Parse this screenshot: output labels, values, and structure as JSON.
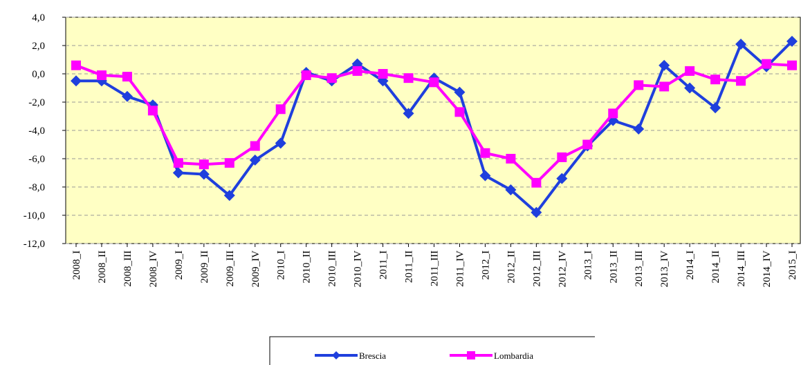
{
  "chart_data": {
    "type": "line",
    "categories": [
      "2008_I",
      "2008_II",
      "2008_III",
      "2008_IV",
      "2009_I",
      "2009_II",
      "2009_III",
      "2009_IV",
      "2010_I",
      "2010_II",
      "2010_III",
      "2010_IV",
      "2011_I",
      "2011_II",
      "2011_III",
      "2011_IV",
      "2012_I",
      "2012_II",
      "2012_III",
      "2012_IV",
      "2013_I",
      "2013_II",
      "2013_III",
      "2013_IV",
      "2014_I",
      "2014_II",
      "2014_III",
      "2014_IV",
      "2015_I"
    ],
    "series": [
      {
        "name": "Brescia",
        "color": "#1f3fdd",
        "marker": "diamond",
        "values": [
          -0.5,
          -0.5,
          -1.6,
          -2.2,
          -7.0,
          -7.1,
          -8.6,
          -6.1,
          -4.9,
          0.1,
          -0.5,
          0.7,
          -0.5,
          -2.8,
          -0.3,
          -1.3,
          -7.2,
          -8.2,
          -9.8,
          -7.4,
          -5.1,
          -3.3,
          -3.9,
          0.6,
          -1.0,
          -2.4,
          2.1,
          0.5,
          2.3
        ]
      },
      {
        "name": "Lombardia",
        "color": "#ff00ff",
        "marker": "square",
        "values": [
          0.6,
          -0.1,
          -0.2,
          -2.6,
          -6.3,
          -6.4,
          -6.3,
          -5.1,
          -2.5,
          -0.1,
          -0.3,
          0.2,
          0.0,
          -0.3,
          -0.6,
          -2.7,
          -5.6,
          -6.0,
          -7.7,
          -5.9,
          -5.0,
          -2.8,
          -0.8,
          -0.9,
          0.2,
          -0.4,
          -0.5,
          0.7,
          0.6
        ]
      }
    ],
    "ylim": [
      -12,
      4
    ],
    "yticks": [
      {
        "value": 4,
        "label": "4,0"
      },
      {
        "value": 2,
        "label": "2,0"
      },
      {
        "value": 0,
        "label": "0,0"
      },
      {
        "value": -2,
        "label": "-2,0"
      },
      {
        "value": -4,
        "label": "-4,0"
      },
      {
        "value": -6,
        "label": "-6,0"
      },
      {
        "value": -8,
        "label": "-8,0"
      },
      {
        "value": -10,
        "label": "-10,0"
      },
      {
        "value": -12,
        "label": "-12,0"
      }
    ],
    "grid": true,
    "legend": "bottom",
    "plot_background": "#ffffc4"
  }
}
